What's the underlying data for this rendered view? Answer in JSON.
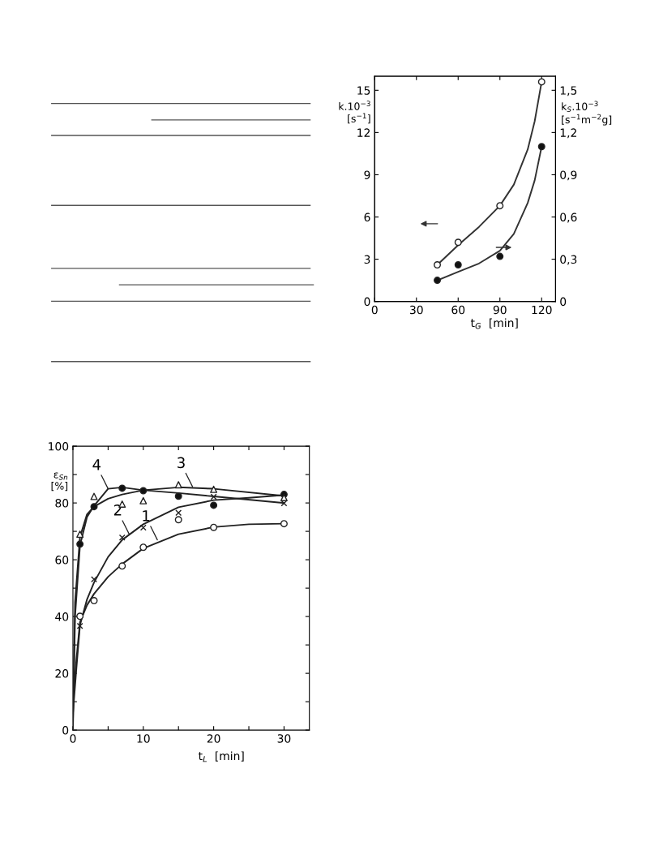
{
  "chart_data": [
    {
      "type": "scatter",
      "xlabel": "t$_{G}$  [min]",
      "ylabel": "k.10$^{−3}$\n[s$^{−1}$]",
      "y2label": "k$_{S}$.10$^{−3}$\n[s$^{−1}$m$^{−2}$g]",
      "xlim": [
        0,
        130
      ],
      "xticks": [
        0,
        30,
        60,
        90,
        120
      ],
      "ylim": [
        0,
        16
      ],
      "yticks": [
        0,
        3,
        6,
        9,
        12,
        15
      ],
      "y2lim": [
        0,
        1.6
      ],
      "y2ticks": [
        {
          "value": 0,
          "label": "0"
        },
        {
          "value": 0.3,
          "label": "0,3"
        },
        {
          "value": 0.6,
          "label": "0,6"
        },
        {
          "value": 0.9,
          "label": "0,9"
        },
        {
          "value": 1.2,
          "label": "1,2"
        },
        {
          "value": 1.5,
          "label": "1,5"
        }
      ],
      "grid": false,
      "legend": false,
      "series": [
        {
          "type": "scatter",
          "marker": "circle",
          "color": "#ffffff",
          "x": [
            45,
            60,
            90,
            120
          ],
          "values": [
            2.6,
            4.2,
            6.8,
            15.6
          ]
        },
        {
          "type": "line",
          "marker": "none",
          "color": "#333333",
          "x": [
            45,
            60,
            75,
            90,
            100,
            110,
            115,
            120
          ],
          "values": [
            2.6,
            4.0,
            5.3,
            6.8,
            8.3,
            10.8,
            12.8,
            15.6
          ]
        },
        {
          "type": "scatter",
          "axis": "y2",
          "marker": "circle",
          "color": "#111111",
          "x": [
            45,
            60,
            90,
            120
          ],
          "values": [
            0.15,
            0.26,
            0.32,
            1.1
          ]
        },
        {
          "type": "line",
          "axis": "y2",
          "marker": "none",
          "color": "#333333",
          "x": [
            45,
            60,
            75,
            90,
            100,
            110,
            115,
            120
          ],
          "values": [
            0.15,
            0.21,
            0.27,
            0.36,
            0.48,
            0.7,
            0.86,
            1.1
          ]
        }
      ]
    },
    {
      "type": "scatter",
      "xlabel": "t$_{L}$  [min]",
      "ylabel": "ε$_{Sn}$\n[%]",
      "xlim": [
        0,
        33.6
      ],
      "xticks": [
        0,
        10,
        20,
        30,
        {
          "value": 5,
          "label": null
        },
        {
          "value": 15,
          "label": null
        },
        {
          "value": 25,
          "label": null
        }
      ],
      "ylim": [
        0,
        100
      ],
      "yticks": [
        0,
        20,
        40,
        60,
        80,
        100,
        {
          "value": 10,
          "label": null
        },
        {
          "value": 30,
          "label": null
        },
        {
          "value": 50,
          "label": null
        },
        {
          "value": 70,
          "label": null
        },
        {
          "value": 90,
          "label": null
        }
      ],
      "grid": false,
      "legend": false,
      "annotations": [
        {
          "text": "1",
          "x": 12,
          "y": 67
        },
        {
          "text": "2",
          "x": 8,
          "y": 69
        },
        {
          "text": "3",
          "x": 17,
          "y": 85.7
        },
        {
          "text": "4",
          "x": 5,
          "y": 85
        }
      ],
      "series": [
        {
          "type": "scatter",
          "marker": "circle",
          "color": "#ffffff",
          "x": [
            1,
            3,
            7,
            10,
            15,
            20,
            30
          ],
          "values": [
            40.1,
            45.6,
            57.8,
            64.4,
            74.1,
            71.4,
            72.7
          ]
        },
        {
          "type": "line",
          "marker": "none",
          "color": "#222222",
          "x": [
            0,
            0.5,
            1,
            2,
            3,
            5,
            7,
            10,
            15,
            20,
            25,
            30
          ],
          "values": [
            10,
            25,
            38,
            44,
            48,
            54,
            58.5,
            64,
            69,
            71.5,
            72.5,
            72.7
          ]
        },
        {
          "type": "scatter",
          "marker": "cross",
          "color": "#222222",
          "x": [
            1,
            3,
            7,
            10,
            15,
            20,
            30
          ],
          "values": [
            36.7,
            53.1,
            67.8,
            71.3,
            76.5,
            82.2,
            79.9
          ]
        },
        {
          "type": "line",
          "marker": "none",
          "color": "#222222",
          "x": [
            0,
            0.5,
            1,
            2,
            3,
            5,
            7,
            10,
            15,
            20,
            25,
            30
          ],
          "values": [
            6,
            22,
            37,
            46,
            52,
            61,
            67,
            72.5,
            78.5,
            81,
            81.8,
            82.8
          ]
        },
        {
          "type": "scatter",
          "marker": "triangle",
          "color": "#ffffff",
          "x": [
            1,
            3,
            7,
            10,
            15,
            20,
            30
          ],
          "values": [
            69.0,
            82.3,
            79.6,
            80.8,
            86.4,
            84.8,
            81.9
          ]
        },
        {
          "type": "line",
          "marker": "none",
          "color": "#222222",
          "x": [
            0,
            0.3,
            1,
            2,
            3,
            5,
            7,
            10,
            15,
            20,
            30
          ],
          "values": [
            3,
            45,
            68,
            76,
            78.7,
            81.5,
            83,
            84.5,
            85.5,
            85,
            82.5
          ]
        },
        {
          "type": "scatter",
          "marker": "circle",
          "color": "#111111",
          "x": [
            1,
            3,
            7,
            10,
            15,
            20,
            30
          ],
          "values": [
            65.5,
            78.7,
            85.2,
            84.3,
            82.4,
            79.2,
            83.0
          ]
        },
        {
          "type": "line",
          "marker": "none",
          "color": "#222222",
          "x": [
            0,
            0.3,
            1,
            2,
            3,
            5,
            7,
            10,
            15,
            20,
            30
          ],
          "values": [
            0,
            40,
            65,
            75,
            79,
            85,
            85.5,
            84.5,
            83.5,
            82.3,
            80
          ]
        }
      ]
    }
  ]
}
